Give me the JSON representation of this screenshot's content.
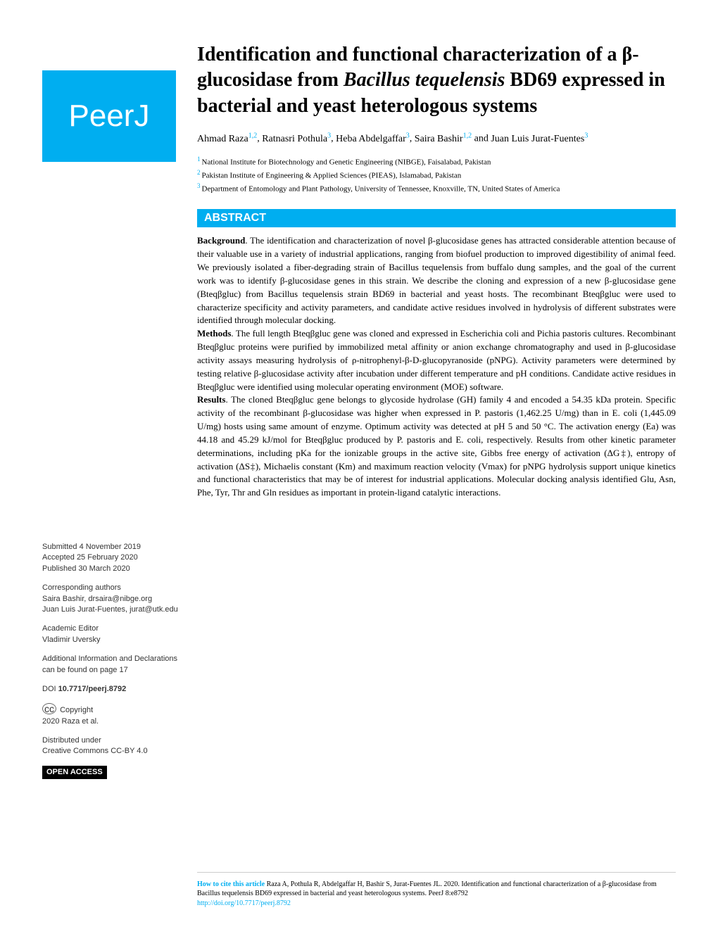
{
  "logo": "PeerJ",
  "title_parts": {
    "line1": "Identification and functional characterization of a β-glucosidase from ",
    "italic": "Bacillus tequelensis",
    "line2": " BD69 expressed in bacterial and yeast heterologous systems"
  },
  "authors": [
    {
      "name": "Ahmad Raza",
      "affil": "1,2"
    },
    {
      "name": "Ratnasri Pothula",
      "affil": "3"
    },
    {
      "name": "Heba Abdelgaffar",
      "affil": "3"
    },
    {
      "name": "Saira Bashir",
      "affil": "1,2"
    },
    {
      "name": "Juan Luis Jurat-Fuentes",
      "affil": "3"
    }
  ],
  "and_word": " and ",
  "affiliations": [
    {
      "num": "1",
      "text": "National Institute for Biotechnology and Genetic Engineering (NIBGE), Faisalabad, Pakistan"
    },
    {
      "num": "2",
      "text": "Pakistan Institute of Engineering & Applied Sciences (PIEAS), Islamabad, Pakistan"
    },
    {
      "num": "3",
      "text": "Department of Entomology and Plant Pathology, University of Tennessee, Knoxville, TN, United States of America"
    }
  ],
  "abstract_label": "ABSTRACT",
  "abstract": {
    "background_label": "Background",
    "background_text": ". The identification and characterization of novel β-glucosidase genes has attracted considerable attention because of their valuable use in a variety of industrial applications, ranging from biofuel production to improved digestibility of animal feed. We previously isolated a fiber-degrading strain of Bacillus tequelensis from buffalo dung samples, and the goal of the current work was to identify β-glucosidase genes in this strain. We describe the cloning and expression of a new β-glucosidase gene (Bteqβgluc) from Bacillus tequelensis strain BD69 in bacterial and yeast hosts. The recombinant Bteqβgluc were used to characterize specificity and activity parameters, and candidate active residues involved in hydrolysis of different substrates were identified through molecular docking.",
    "methods_label": "Methods",
    "methods_text": ". The full length Bteqβgluc gene was cloned and expressed in Escherichia coli and Pichia pastoris cultures. Recombinant Bteqβgluc proteins were purified by immobilized metal affinity or anion exchange chromatography and used in β-glucosidase activity assays measuring hydrolysis of ρ-nitrophenyl-β-D-glucopyranoside (pNPG). Activity parameters were determined by testing relative β-glucosidase activity after incubation under different temperature and pH conditions. Candidate active residues in Bteqβgluc were identified using molecular operating environment (MOE) software.",
    "results_label": "Results",
    "results_text": ". The cloned Bteqβgluc gene belongs to glycoside hydrolase (GH) family 4 and encoded a 54.35 kDa protein. Specific activity of the recombinant β-glucosidase was higher when expressed in P. pastoris (1,462.25 U/mg) than in E. coli (1,445.09 U/mg) hosts using same amount of enzyme. Optimum activity was detected at pH 5 and 50 °C. The activation energy (Ea) was 44.18 and 45.29 kJ/mol for Bteqβgluc produced by P. pastoris and E. coli, respectively. Results from other kinetic parameter determinations, including pKa for the ionizable groups in the active site, Gibbs free energy of activation (ΔG‡), entropy of activation (ΔS‡), Michaelis constant (Km) and maximum reaction velocity (Vmax) for pNPG hydrolysis support unique kinetics and functional characteristics that may be of interest for industrial applications. Molecular docking analysis identified Glu, Asn, Phe, Tyr, Thr and Gln residues as important in protein-ligand catalytic interactions."
  },
  "sidebar": {
    "submitted_label": "Submitted",
    "submitted_date": "4 November 2019",
    "accepted_label": "Accepted",
    "accepted_date": "25 February 2020",
    "published_label": "Published",
    "published_date": "30 March 2020",
    "corresponding_label": "Corresponding authors",
    "corresponding_1": "Saira Bashir, drsaira@nibge.org",
    "corresponding_2": "Juan Luis Jurat-Fuentes, jurat@utk.edu",
    "editor_label": "Academic Editor",
    "editor_name": "Vladimir Uversky",
    "additional_info": "Additional Information and Declarations can be found on page 17",
    "doi_label": "DOI",
    "doi": "10.7717/peerj.8792",
    "copyright_label": "Copyright",
    "copyright_text": "2020 Raza et al.",
    "distributed_label": "Distributed under",
    "license": "Creative Commons CC-BY 4.0",
    "open_access": "OPEN ACCESS"
  },
  "footer": {
    "cite_label": "How to cite this article",
    "cite_text": " Raza A, Pothula R, Abdelgaffar H, Bashir S, Jurat-Fuentes JL. 2020. Identification and functional characterization of a β-glucosidase from Bacillus tequelensis BD69 expressed in bacterial and yeast heterologous systems. PeerJ 8:e8792",
    "url": "http://doi.org/10.7717/peerj.8792"
  }
}
